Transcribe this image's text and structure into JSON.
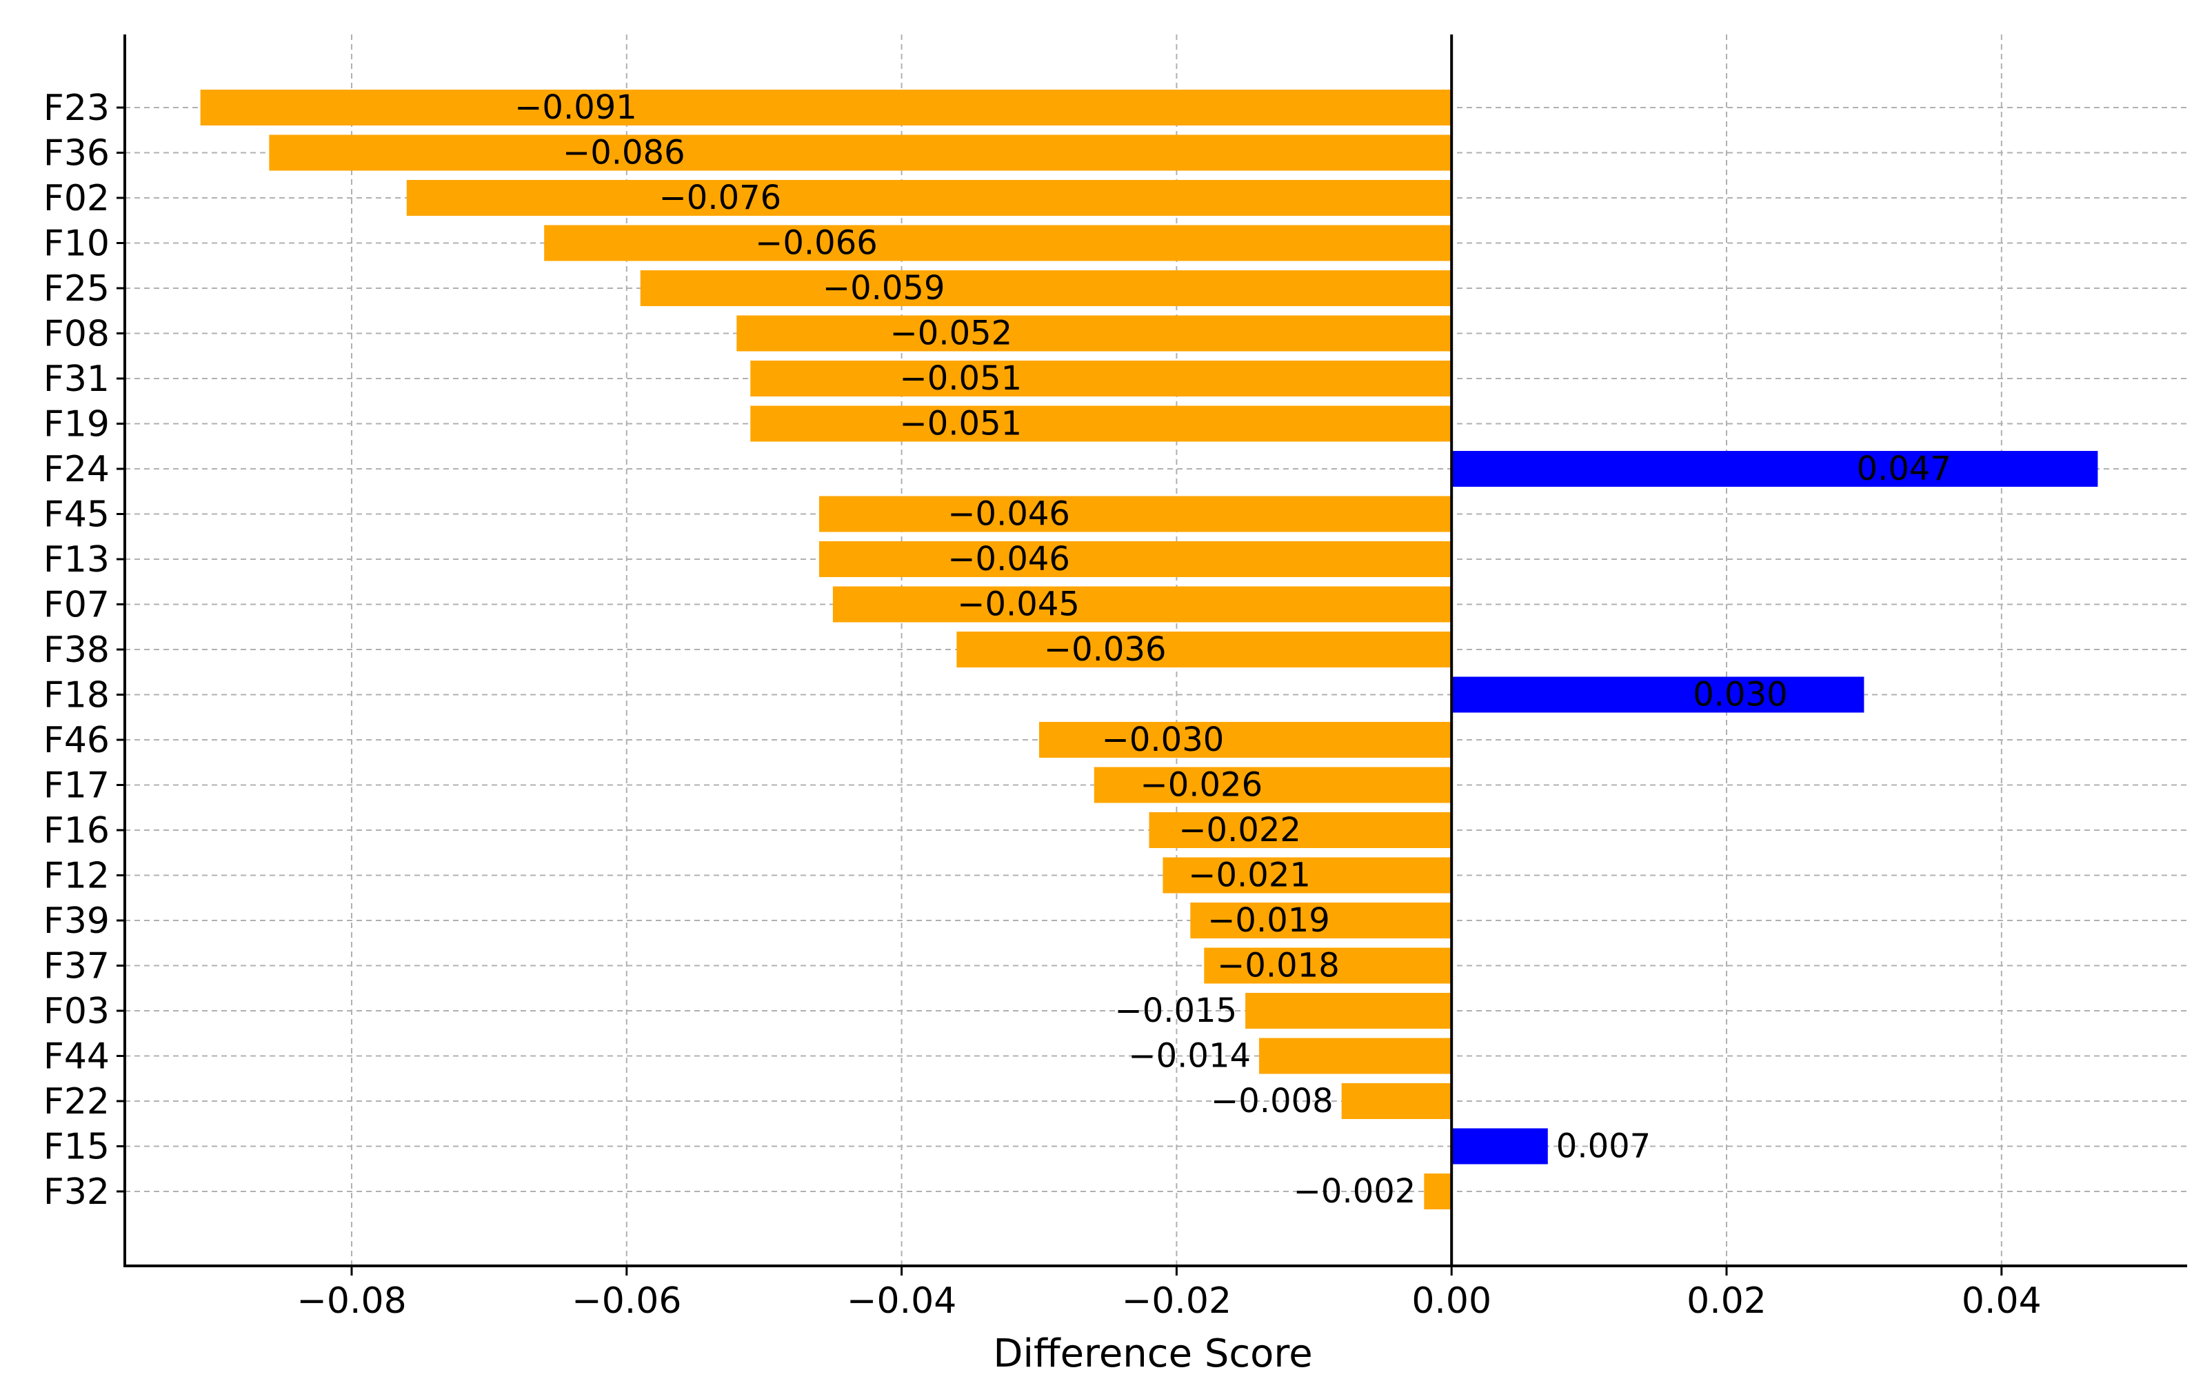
{
  "chart_data": {
    "type": "bar",
    "orientation": "horizontal",
    "title": "",
    "xlabel": "Difference Score",
    "ylabel": "",
    "xlim": [
      -0.0965,
      0.0535
    ],
    "xticks": [
      -0.08,
      -0.06,
      -0.04,
      -0.02,
      0.0,
      0.02,
      0.04
    ],
    "xtick_labels": [
      "−0.08",
      "−0.06",
      "−0.04",
      "−0.02",
      "0.00",
      "0.02",
      "0.04"
    ],
    "grid": true,
    "categories": [
      "F23",
      "F36",
      "F02",
      "F10",
      "F25",
      "F08",
      "F31",
      "F19",
      "F24",
      "F45",
      "F13",
      "F07",
      "F38",
      "F18",
      "F46",
      "F17",
      "F16",
      "F12",
      "F39",
      "F37",
      "F03",
      "F44",
      "F22",
      "F15",
      "F32"
    ],
    "values": [
      -0.091,
      -0.086,
      -0.076,
      -0.066,
      -0.059,
      -0.052,
      -0.051,
      -0.051,
      0.047,
      -0.046,
      -0.046,
      -0.045,
      -0.036,
      0.03,
      -0.03,
      -0.026,
      -0.022,
      -0.021,
      -0.019,
      -0.018,
      -0.015,
      -0.014,
      -0.008,
      0.007,
      -0.002
    ],
    "value_labels": [
      "−0.091",
      "−0.086",
      "−0.076",
      "−0.066",
      "−0.059",
      "−0.052",
      "−0.051",
      "−0.051",
      "0.047",
      "−0.046",
      "−0.046",
      "−0.045",
      "−0.036",
      "0.030",
      "−0.030",
      "−0.026",
      "−0.022",
      "−0.021",
      "−0.019",
      "−0.018",
      "−0.015",
      "−0.014",
      "−0.008",
      "0.007",
      "−0.002"
    ],
    "colors": {
      "negative": "#FFA500",
      "positive": "#0000FF",
      "label_inside": "#FFFFFF",
      "label_outside": "#000000",
      "grid": "#B0B0B0",
      "axis": "#000000"
    }
  }
}
